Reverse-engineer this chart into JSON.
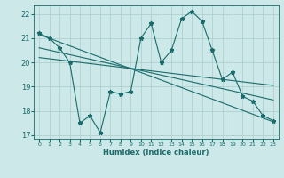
{
  "title": "",
  "xlabel": "Humidex (Indice chaleur)",
  "bg_color": "#cce8e8",
  "line_color": "#1a6b6b",
  "grid_color": "#aacccc",
  "xlim": [
    -0.5,
    23.5
  ],
  "ylim": [
    16.85,
    22.35
  ],
  "yticks": [
    17,
    18,
    19,
    20,
    21,
    22
  ],
  "xticks": [
    0,
    1,
    2,
    3,
    4,
    5,
    6,
    7,
    8,
    9,
    10,
    11,
    12,
    13,
    14,
    15,
    16,
    17,
    18,
    19,
    20,
    21,
    22,
    23
  ],
  "main_x": [
    0,
    1,
    2,
    3,
    4,
    5,
    6,
    7,
    8,
    9,
    10,
    11,
    12,
    13,
    14,
    15,
    16,
    17,
    18,
    19,
    20,
    21,
    22,
    23
  ],
  "main_y": [
    21.2,
    21.0,
    20.6,
    20.0,
    17.5,
    17.8,
    17.1,
    18.8,
    18.7,
    18.8,
    21.0,
    21.6,
    20.0,
    20.5,
    21.8,
    22.1,
    21.7,
    20.5,
    19.3,
    19.6,
    18.6,
    18.4,
    17.8,
    17.6
  ],
  "line1_x": [
    0,
    23
  ],
  "line1_y": [
    21.15,
    17.55
  ],
  "line2_x": [
    0,
    23
  ],
  "line2_y": [
    20.6,
    18.45
  ],
  "line3_x": [
    0,
    23
  ],
  "line3_y": [
    20.2,
    19.05
  ]
}
